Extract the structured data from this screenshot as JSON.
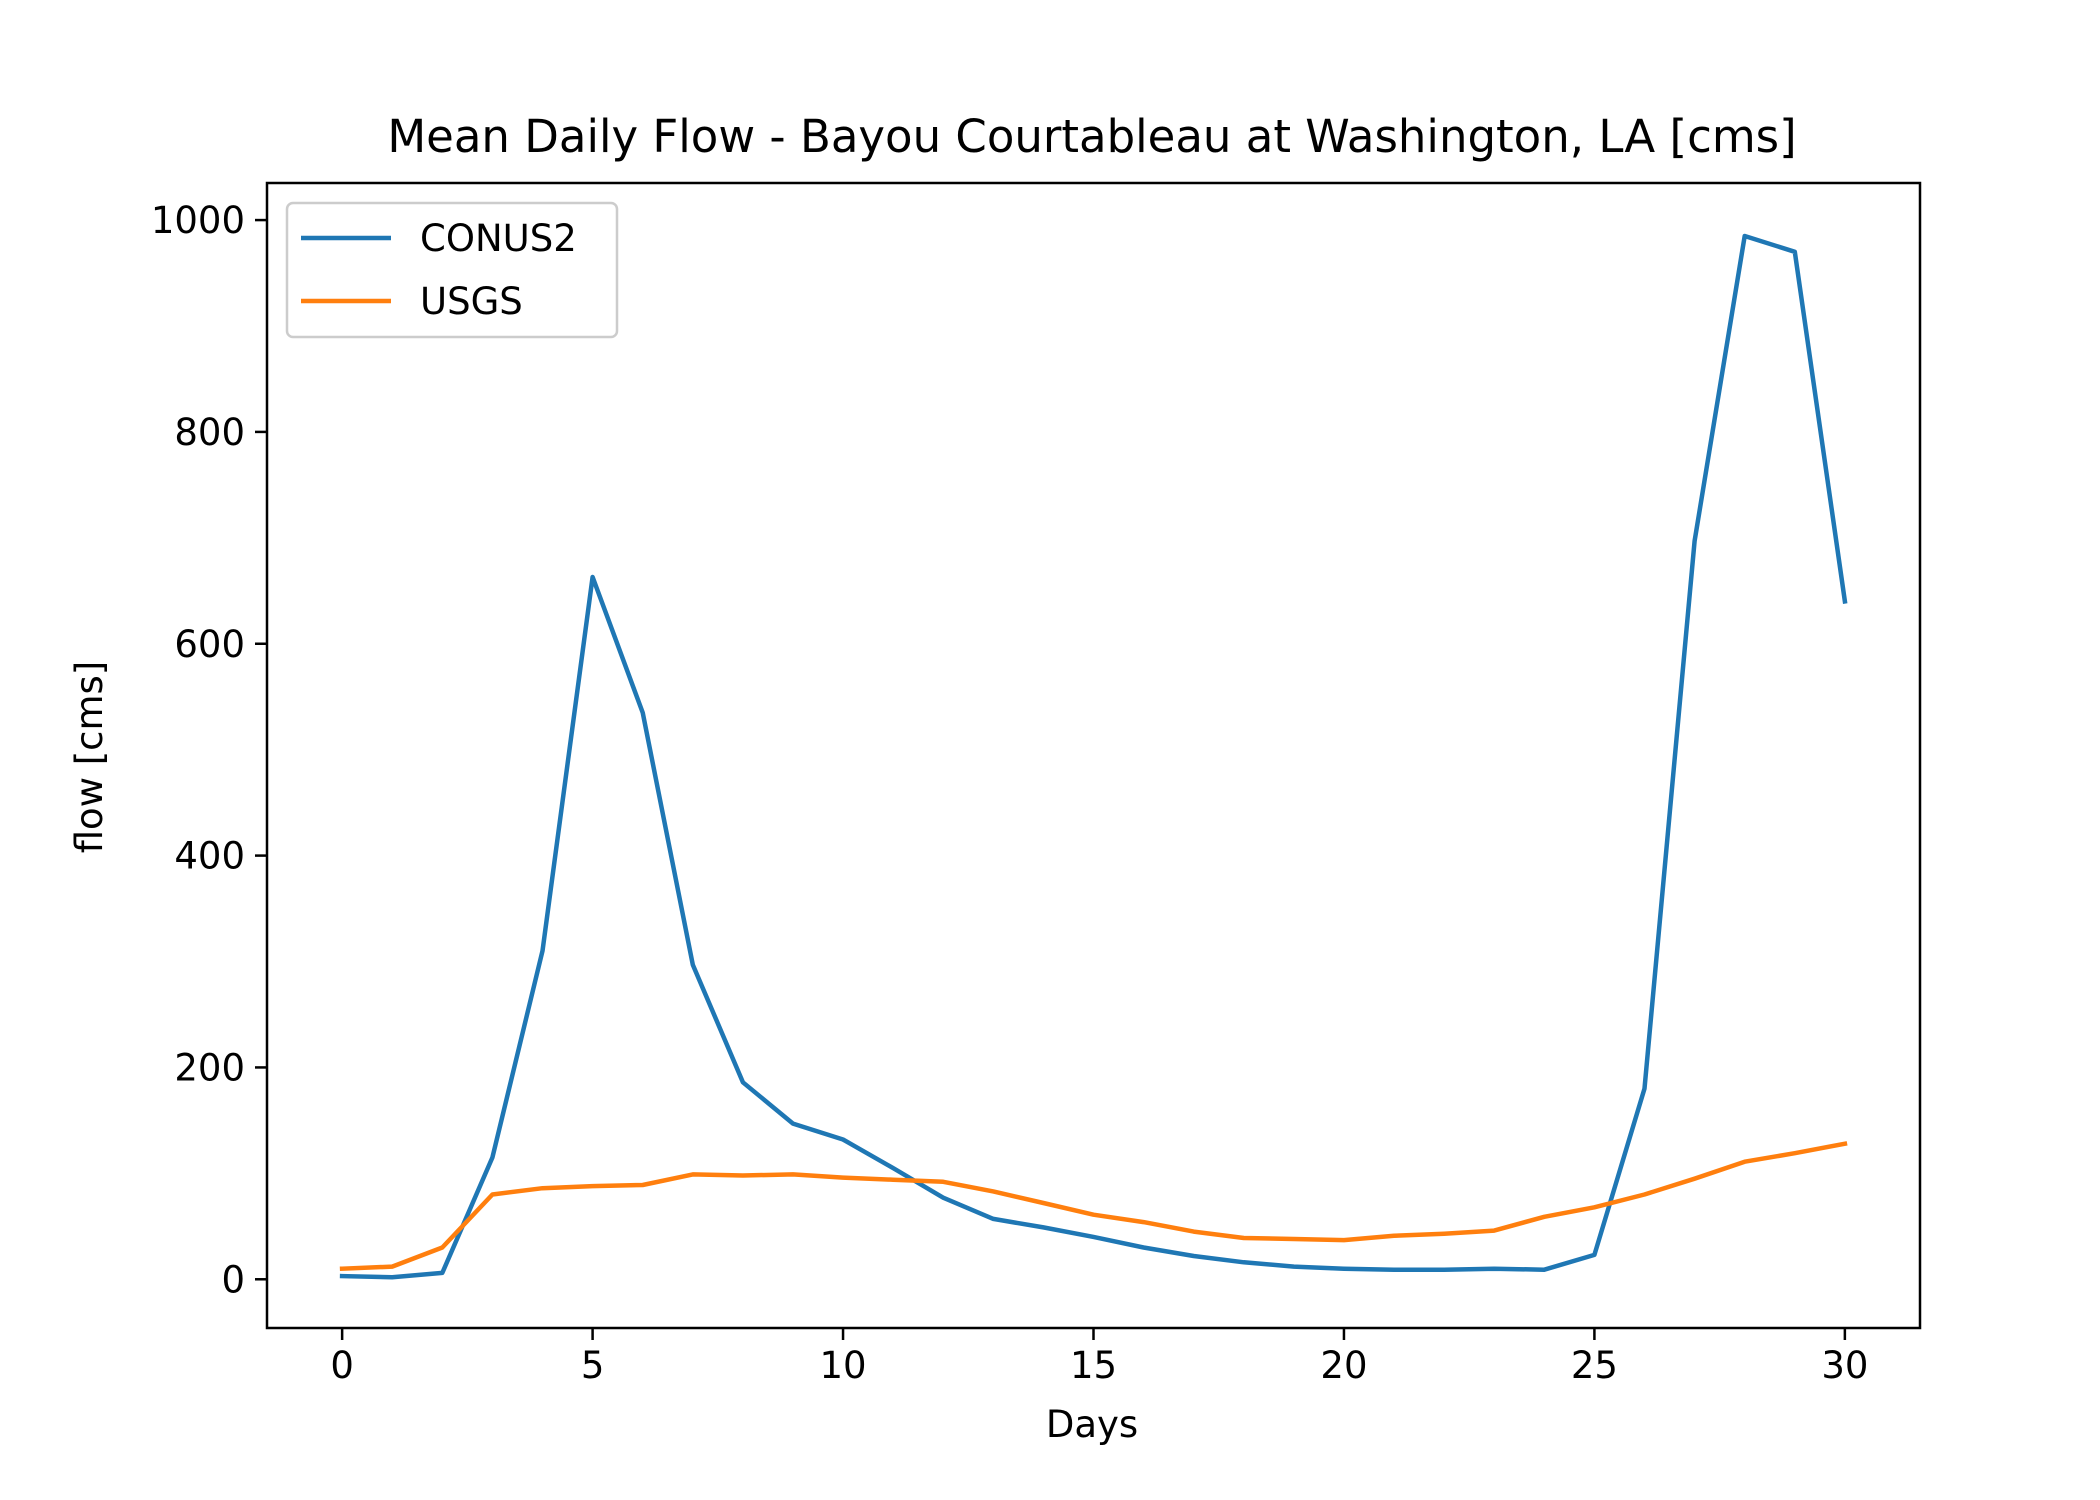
{
  "chart_data": {
    "type": "line",
    "title": "Mean Daily Flow - Bayou Courtableau at Washington, LA [cms]",
    "xlabel": "Days",
    "ylabel": "flow [cms]",
    "xlim": [
      -1.5,
      31.5
    ],
    "ylim": [
      -46,
      1035
    ],
    "xticks": [
      0,
      5,
      10,
      15,
      20,
      25,
      30
    ],
    "xtick_labels": [
      "0",
      "5",
      "10",
      "15",
      "20",
      "25",
      "30"
    ],
    "yticks": [
      0,
      200,
      400,
      600,
      800,
      1000
    ],
    "ytick_labels": [
      "0",
      "200",
      "400",
      "600",
      "800",
      "1000"
    ],
    "grid": false,
    "legend_position": "top-left",
    "x": [
      0,
      1,
      2,
      3,
      4,
      5,
      6,
      7,
      8,
      9,
      10,
      11,
      12,
      13,
      14,
      15,
      16,
      17,
      18,
      19,
      20,
      21,
      22,
      23,
      24,
      25,
      26,
      27,
      28,
      29,
      30
    ],
    "series": [
      {
        "name": "CONUS2",
        "color": "#1f77b4",
        "values": [
          3,
          2,
          6,
          115,
          310,
          663,
          535,
          297,
          186,
          147,
          132,
          105,
          77,
          57,
          49,
          40,
          30,
          22,
          16,
          12,
          10,
          9,
          9,
          10,
          9,
          23,
          180,
          697,
          985,
          970,
          640
        ]
      },
      {
        "name": "USGS",
        "color": "#ff7f0e",
        "values": [
          10,
          12,
          30,
          80,
          86,
          88,
          89,
          99,
          98,
          99,
          96,
          94,
          92,
          83,
          72,
          61,
          54,
          45,
          39,
          38,
          37,
          41,
          43,
          46,
          59,
          68,
          80,
          95,
          111,
          119,
          128
        ]
      }
    ]
  }
}
